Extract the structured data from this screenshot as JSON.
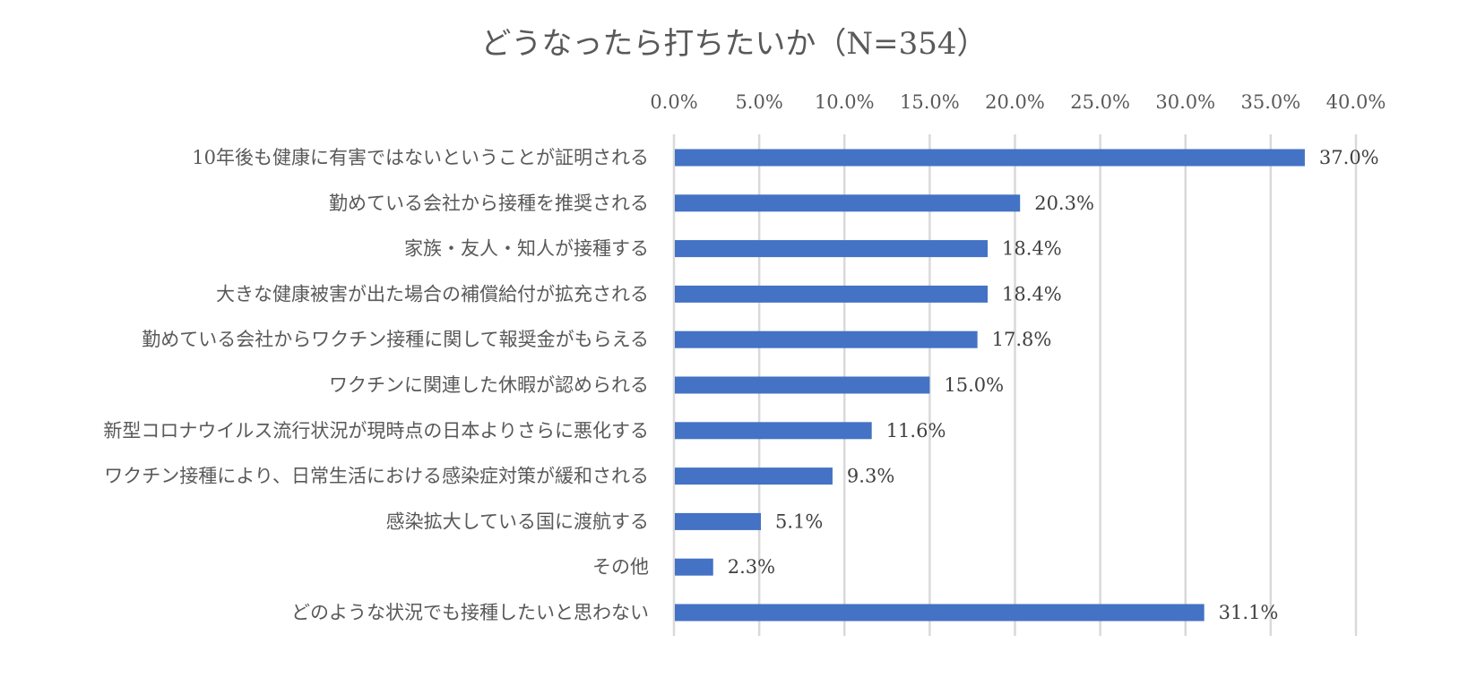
{
  "chart_data": {
    "type": "bar",
    "orientation": "horizontal",
    "title": "どうなったら打ちたいか（N=354）",
    "xlabel": "",
    "ylabel": "",
    "xlim": [
      0,
      40
    ],
    "x_ticks": [
      "0.0%",
      "5.0%",
      "10.0%",
      "15.0%",
      "20.0%",
      "25.0%",
      "30.0%",
      "35.0%",
      "40.0%"
    ],
    "x_tick_values": [
      0,
      5,
      10,
      15,
      20,
      25,
      30,
      35,
      40
    ],
    "x_axis_position": "top",
    "grid": true,
    "legend": "none",
    "bar_color": "#4472C4",
    "categories": [
      "10年後も健康に有害ではないということが証明される",
      "勤めている会社から接種を推奨される",
      "家族・友人・知人が接種する",
      "大きな健康被害が出た場合の補償給付が拡充される",
      "勤めている会社からワクチン接種に関して報奨金がもらえる",
      "ワクチンに関連した休暇が認められる",
      "新型コロナウイルス流行状況が現時点の日本よりさらに悪化する",
      "ワクチン接種により、日常生活における感染症対策が緩和される",
      "感染拡大している国に渡航する",
      "その他",
      "どのような状況でも接種したいと思わない"
    ],
    "values": [
      37.0,
      20.3,
      18.4,
      18.4,
      17.8,
      15.0,
      11.6,
      9.3,
      5.1,
      2.3,
      31.1
    ],
    "data_labels": [
      "37.0%",
      "20.3%",
      "18.4%",
      "18.4%",
      "17.8%",
      "15.0%",
      "11.6%",
      "9.3%",
      "5.1%",
      "2.3%",
      "31.1%"
    ]
  }
}
